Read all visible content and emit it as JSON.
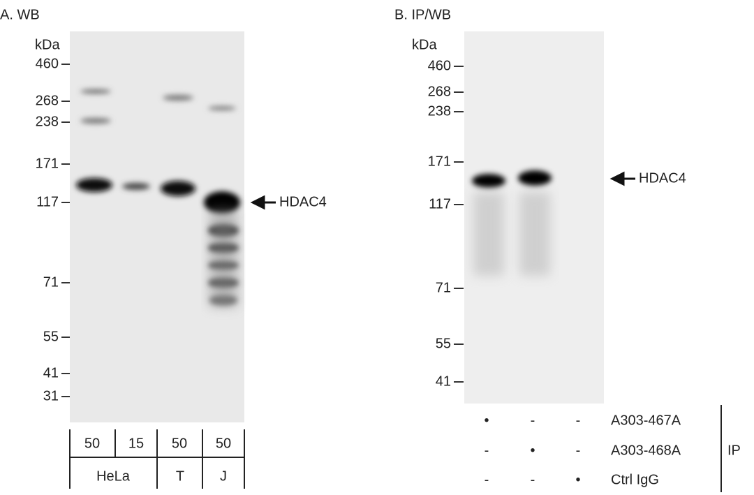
{
  "panels": [
    {
      "title": "A. WB",
      "unit": "kDa",
      "markers": [
        "460",
        "268",
        "238",
        "171",
        "117",
        "71",
        "55",
        "41",
        "31"
      ],
      "lanes": [
        "50",
        "15",
        "50",
        "50"
      ],
      "groups": [
        "HeLa",
        "T",
        "J"
      ],
      "target": "HDAC4"
    },
    {
      "title": "B. IP/WB",
      "unit": "kDa",
      "markers": [
        "460",
        "268",
        "238",
        "171",
        "117",
        "71",
        "55",
        "41"
      ],
      "target": "HDAC4",
      "ip_rows": [
        {
          "marks": [
            "•",
            "-",
            "-"
          ],
          "label": "A303-467A"
        },
        {
          "marks": [
            "-",
            "•",
            "-"
          ],
          "label": "A303-468A"
        },
        {
          "marks": [
            "-",
            "-",
            "•"
          ],
          "label": "Ctrl IgG"
        }
      ],
      "ip_label": "IP"
    }
  ]
}
